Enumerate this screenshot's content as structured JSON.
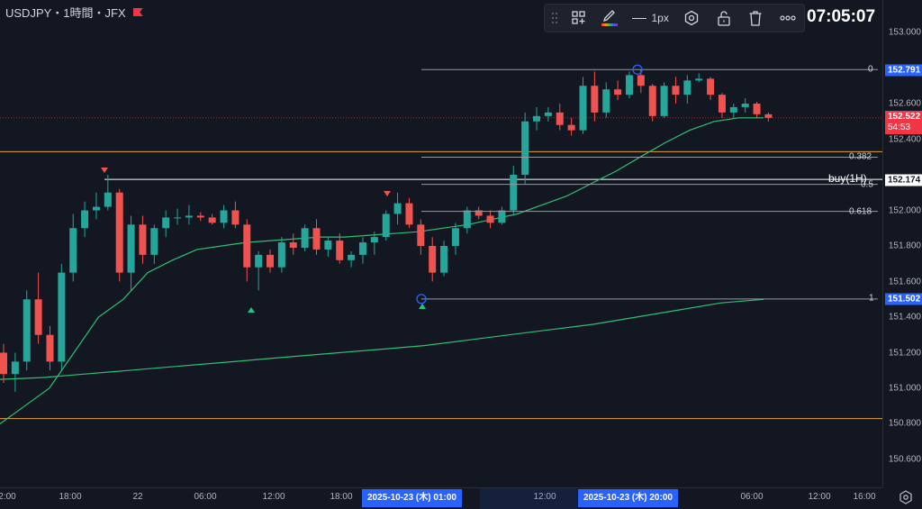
{
  "symbol": {
    "title": "USDJPY・1時間・JFX",
    "flag_color": "#f23645"
  },
  "toolbar": {
    "line_width_label": "1px",
    "icons": [
      "drag-handle",
      "add-template-icon",
      "pencil-icon",
      "line-style-icon",
      "settings-hexagon-icon",
      "unlock-icon",
      "trash-icon",
      "more-icon"
    ]
  },
  "clock": "07:05:07",
  "price_axis": {
    "ticks": [
      "153.000",
      "152.600",
      "152.400",
      "152.000",
      "151.800",
      "151.600",
      "151.400",
      "151.200",
      "151.000",
      "150.800",
      "150.600"
    ],
    "badges": {
      "high": {
        "text": "152.791",
        "color": "#2962ff"
      },
      "current": {
        "text": "152.522",
        "countdown": "54:53",
        "color": "#f23645"
      },
      "buy": {
        "text": "152.174",
        "color": "#ffffff"
      },
      "low": {
        "text": "151.502",
        "color": "#2962ff"
      }
    }
  },
  "time_axis": {
    "ticks": [
      "2:00",
      "18:00",
      "22",
      "06:00",
      "12:00",
      "18:00",
      "12:00",
      "06:00",
      "12:00",
      "16:00"
    ],
    "badges": [
      "2025-10-23 (木)   01:00",
      "2025-10-23 (木)   20:00"
    ]
  },
  "fibonacci": {
    "levels": [
      "0",
      "0.382",
      "0.5",
      "0.618",
      "1"
    ]
  },
  "buy_label": "buy(1H)",
  "colors": {
    "up": "#26a69a",
    "down": "#ef5350",
    "ma": "#2fbf71",
    "support": "#e0a33a",
    "accent": "#2962ff"
  },
  "chart_data": {
    "type": "candlestick",
    "symbol": "USDJPY",
    "timeframe": "1H",
    "y_range": [
      150.6,
      153.05
    ],
    "candles": [
      [
        151.2,
        151.25,
        151.03,
        151.08
      ],
      [
        151.08,
        151.2,
        150.98,
        151.15
      ],
      [
        151.15,
        151.55,
        151.1,
        151.5
      ],
      [
        151.5,
        151.65,
        151.25,
        151.3
      ],
      [
        151.3,
        151.35,
        151.1,
        151.15
      ],
      [
        151.15,
        151.7,
        151.1,
        151.65
      ],
      [
        151.65,
        151.98,
        151.6,
        151.9
      ],
      [
        151.9,
        152.05,
        151.85,
        152.0
      ],
      [
        152.0,
        152.1,
        151.95,
        152.02
      ],
      [
        152.02,
        152.2,
        152.0,
        152.1
      ],
      [
        152.1,
        152.12,
        151.6,
        151.65
      ],
      [
        151.65,
        151.97,
        151.55,
        151.92
      ],
      [
        151.92,
        151.97,
        151.7,
        151.75
      ],
      [
        151.75,
        151.92,
        151.7,
        151.9
      ],
      [
        151.9,
        152.0,
        151.85,
        151.96
      ],
      [
        151.96,
        152.01,
        151.92,
        151.96
      ],
      [
        151.96,
        152.03,
        151.92,
        151.97
      ],
      [
        151.97,
        151.99,
        151.94,
        151.96
      ],
      [
        151.96,
        151.98,
        151.92,
        151.93
      ],
      [
        151.93,
        152.03,
        151.9,
        152.0
      ],
      [
        152.0,
        152.05,
        151.9,
        151.92
      ],
      [
        151.92,
        151.95,
        151.6,
        151.68
      ],
      [
        151.68,
        151.77,
        151.55,
        151.75
      ],
      [
        151.75,
        151.78,
        151.65,
        151.68
      ],
      [
        151.68,
        151.85,
        151.65,
        151.82
      ],
      [
        151.82,
        151.87,
        151.75,
        151.79
      ],
      [
        151.79,
        151.92,
        151.77,
        151.9
      ],
      [
        151.9,
        151.95,
        151.75,
        151.78
      ],
      [
        151.78,
        151.85,
        151.74,
        151.83
      ],
      [
        151.83,
        151.87,
        151.7,
        151.72
      ],
      [
        151.72,
        151.77,
        151.68,
        151.75
      ],
      [
        151.75,
        151.85,
        151.7,
        151.82
      ],
      [
        151.82,
        151.88,
        151.75,
        151.85
      ],
      [
        151.85,
        152.0,
        151.83,
        151.98
      ],
      [
        151.98,
        152.1,
        151.92,
        152.04
      ],
      [
        152.04,
        152.07,
        151.9,
        151.92
      ],
      [
        151.92,
        151.95,
        151.75,
        151.8
      ],
      [
        151.8,
        151.85,
        151.6,
        151.65
      ],
      [
        151.65,
        151.83,
        151.63,
        151.8
      ],
      [
        151.8,
        151.93,
        151.75,
        151.9
      ],
      [
        151.9,
        152.02,
        151.87,
        152.0
      ],
      [
        152.0,
        152.02,
        151.95,
        151.97
      ],
      [
        151.97,
        152.0,
        151.9,
        151.93
      ],
      [
        151.93,
        152.02,
        151.92,
        152.0
      ],
      [
        152.0,
        152.25,
        151.97,
        152.2
      ],
      [
        152.2,
        152.55,
        152.15,
        152.5
      ],
      [
        152.5,
        152.58,
        152.45,
        152.53
      ],
      [
        152.53,
        152.58,
        152.5,
        152.55
      ],
      [
        152.55,
        152.6,
        152.45,
        152.48
      ],
      [
        152.48,
        152.52,
        152.42,
        152.45
      ],
      [
        152.45,
        152.75,
        152.43,
        152.7
      ],
      [
        152.7,
        152.78,
        152.5,
        152.55
      ],
      [
        152.55,
        152.72,
        152.52,
        152.68
      ],
      [
        152.68,
        152.73,
        152.62,
        152.65
      ],
      [
        152.65,
        152.78,
        152.63,
        152.76
      ],
      [
        152.76,
        152.79,
        152.66,
        152.7
      ],
      [
        152.7,
        152.71,
        152.5,
        152.53
      ],
      [
        152.53,
        152.72,
        152.52,
        152.7
      ],
      [
        152.7,
        152.75,
        152.6,
        152.65
      ],
      [
        152.65,
        152.76,
        152.6,
        152.73
      ],
      [
        152.73,
        152.77,
        152.72,
        152.74
      ],
      [
        152.74,
        152.75,
        152.62,
        152.65
      ],
      [
        152.65,
        152.66,
        152.52,
        152.55
      ],
      [
        152.55,
        152.6,
        152.52,
        152.58
      ],
      [
        152.58,
        152.63,
        152.55,
        152.6
      ],
      [
        152.6,
        152.61,
        152.52,
        152.54
      ],
      [
        152.54,
        152.55,
        152.5,
        152.52
      ]
    ],
    "ma_short": [
      150.8,
      150.9,
      151.0,
      151.2,
      151.4,
      151.5,
      151.65,
      151.72,
      151.78,
      151.8,
      151.82,
      151.83,
      151.84,
      151.85,
      151.85,
      151.86,
      151.87,
      151.88,
      151.9,
      151.92,
      151.95,
      151.98,
      152.03,
      152.08,
      152.15,
      152.22,
      152.3,
      152.38,
      152.45,
      152.5,
      152.52,
      152.52
    ],
    "ma_long": [
      151.05,
      151.06,
      151.08,
      151.1,
      151.12,
      151.14,
      151.16,
      151.18,
      151.2,
      151.22,
      151.24,
      151.27,
      151.3,
      151.33,
      151.36,
      151.4,
      151.44,
      151.48,
      151.5
    ],
    "horizontal_lines": [
      152.33,
      150.83
    ],
    "buy_line": 152.174,
    "fibonacci": {
      "high": 152.791,
      "low": 151.502,
      "levels": [
        0,
        0.382,
        0.5,
        0.618,
        1
      ]
    }
  }
}
